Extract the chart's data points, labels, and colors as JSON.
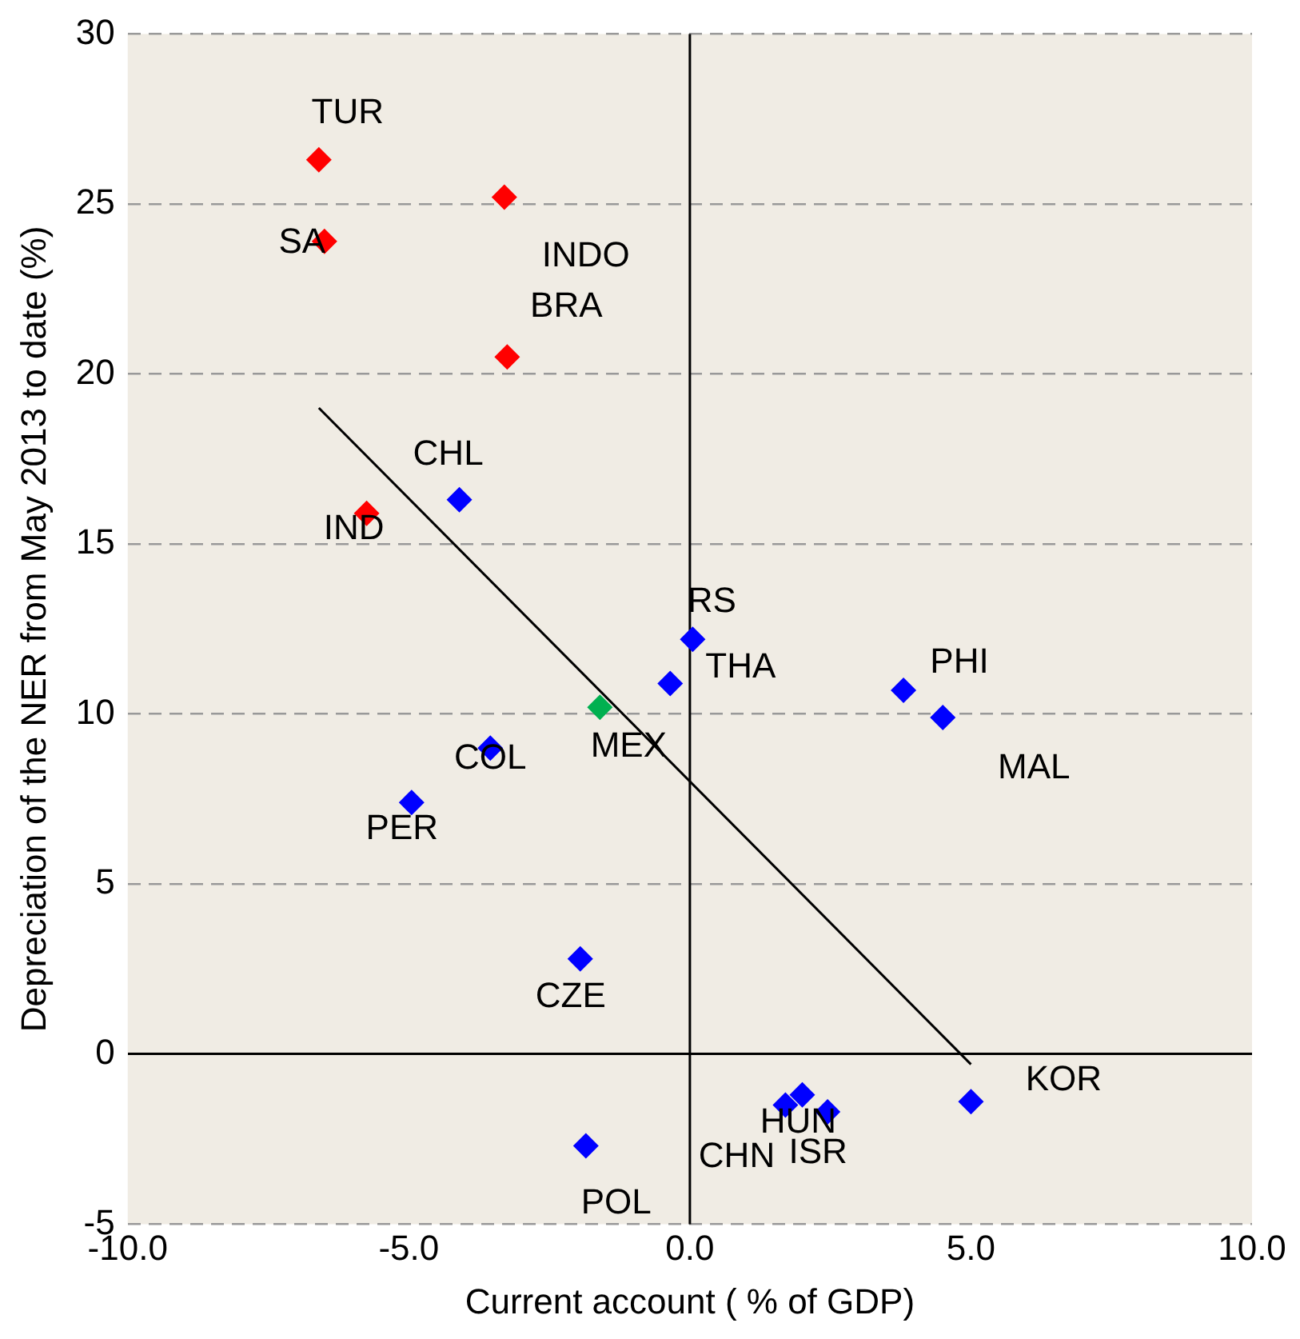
{
  "chart_data": {
    "type": "scatter",
    "xlabel": "Current account ( % of GDP)",
    "ylabel": "Depreciation of the NER from May 2013 to date (%)",
    "xlim": [
      -10,
      10
    ],
    "xticks": [
      {
        "value": -10,
        "label": "-10.0"
      },
      {
        "value": -5,
        "label": "-5.0"
      },
      {
        "value": 0,
        "label": "0.0"
      },
      {
        "value": 5,
        "label": "5.0"
      },
      {
        "value": 10,
        "label": "10.0"
      }
    ],
    "ylim": [
      -5,
      30
    ],
    "yticks": [
      -5,
      0,
      5,
      10,
      15,
      20,
      25,
      30
    ],
    "grid": "y",
    "ref_lines": [
      {
        "axis": "x",
        "value": 0,
        "color": "#000000"
      }
    ],
    "line_style": "dashed",
    "marker": "diamond",
    "legend": false,
    "series": [
      {
        "color": "#ff0000",
        "x": [
          -6.6,
          -6.5,
          -3.3,
          -3.25,
          -5.75
        ],
        "values": [
          26.3,
          23.9,
          25.2,
          20.5,
          15.9
        ]
      },
      {
        "color": "#0000ff",
        "x": [
          -4.1,
          0.05,
          -0.35,
          -3.55,
          -4.95,
          3.8,
          4.5,
          -1.95,
          -1.85,
          1.7,
          2.0,
          2.45,
          5.0
        ],
        "values": [
          16.3,
          12.2,
          10.9,
          9.0,
          7.4,
          10.7,
          9.9,
          2.8,
          -2.7,
          -1.5,
          -1.2,
          -1.7,
          -1.4
        ]
      },
      {
        "color": "#00b050",
        "x": [
          -1.6
        ],
        "values": [
          10.2
        ]
      },
      {
        "type": "line",
        "color": "#000000",
        "marker": "none",
        "line_style": "solid",
        "x": [
          -6.6,
          5.0
        ],
        "values": [
          19.0,
          -0.3
        ]
      }
    ],
    "annotations": [
      {
        "text": "TUR",
        "x": -6.6,
        "y": 26.3
      },
      {
        "text": "SA",
        "x": -6.5,
        "y": 23.9
      },
      {
        "text": "INDO",
        "x": -3.3,
        "y": 25.2
      },
      {
        "text": "BRA",
        "x": -3.25,
        "y": 20.5
      },
      {
        "text": "IND",
        "x": -5.75,
        "y": 15.9
      },
      {
        "text": "CHL",
        "x": -4.1,
        "y": 16.3
      },
      {
        "text": "RS",
        "x": 0.05,
        "y": 12.2
      },
      {
        "text": "THA",
        "x": -0.35,
        "y": 10.9
      },
      {
        "text": "MEX",
        "x": -1.6,
        "y": 10.2
      },
      {
        "text": "COL",
        "x": -3.55,
        "y": 9.0
      },
      {
        "text": "PER",
        "x": -4.95,
        "y": 7.4
      },
      {
        "text": "PHI",
        "x": 3.8,
        "y": 10.7
      },
      {
        "text": "MAL",
        "x": 4.5,
        "y": 9.9
      },
      {
        "text": "CZE",
        "x": -1.95,
        "y": 2.8
      },
      {
        "text": "POL",
        "x": -1.85,
        "y": -2.7
      },
      {
        "text": "HUN",
        "x": 1.7,
        "y": -1.5
      },
      {
        "text": "CHN",
        "x": 2.0,
        "y": -1.2
      },
      {
        "text": "ISR",
        "x": 2.45,
        "y": -1.7
      },
      {
        "text": "KOR",
        "x": 5.0,
        "y": -1.4
      }
    ]
  }
}
